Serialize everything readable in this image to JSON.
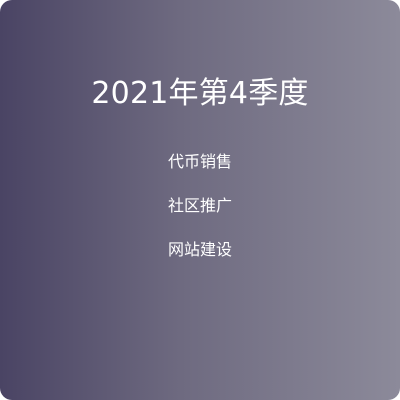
{
  "card": {
    "title": "2021年第4季度",
    "items": [
      {
        "label": "代币销售"
      },
      {
        "label": "社区推广"
      },
      {
        "label": "网站建设"
      }
    ],
    "colors": {
      "gradient_start": "#4a4464",
      "gradient_mid": "#6e6a80",
      "gradient_end": "#8c8a9a",
      "text": "#ffffff"
    }
  }
}
